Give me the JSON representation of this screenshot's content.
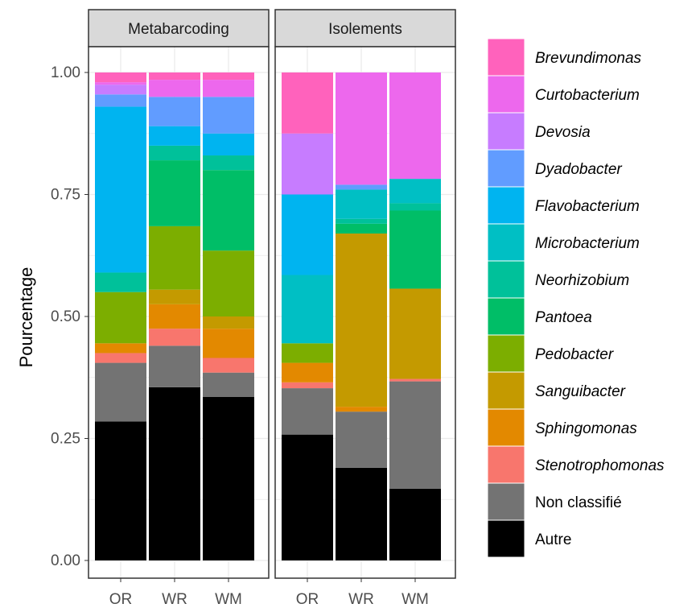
{
  "chart_data": {
    "type": "bar",
    "stacked": true,
    "ylabel": "Pourcentage",
    "ylim": [
      0,
      1
    ],
    "yticks": [
      "0.00",
      "0.25",
      "0.50",
      "0.75",
      "1.00"
    ],
    "categories": [
      "OR",
      "WR",
      "WM"
    ],
    "legend_position": "right",
    "panel_background": "#ffffff",
    "grid_color": "#ebebeb",
    "strip_fill": "#d9d9d9",
    "series": [
      {
        "name": "Autre",
        "color": "#000000",
        "italic": false
      },
      {
        "name": "Non classifié",
        "color": "#737373",
        "italic": false
      },
      {
        "name": "Stenotrophomonas",
        "color": "#f8766d",
        "italic": true
      },
      {
        "name": "Sphingomonas",
        "color": "#e38900",
        "italic": true
      },
      {
        "name": "Sanguibacter",
        "color": "#c49a00",
        "italic": true
      },
      {
        "name": "Pedobacter",
        "color": "#7cae00",
        "italic": true
      },
      {
        "name": "Pantoea",
        "color": "#00be67",
        "italic": true
      },
      {
        "name": "Neorhizobium",
        "color": "#00c19a",
        "italic": true
      },
      {
        "name": "Microbacterium",
        "color": "#00bfc4",
        "italic": true
      },
      {
        "name": "Flavobacterium",
        "color": "#00b4f0",
        "italic": true
      },
      {
        "name": "Dyadobacter",
        "color": "#619cff",
        "italic": true
      },
      {
        "name": "Devosia",
        "color": "#c77cff",
        "italic": true
      },
      {
        "name": "Curtobacterium",
        "color": "#ed68ed",
        "italic": true
      },
      {
        "name": "Brevundimonas",
        "color": "#ff62bc",
        "italic": true
      }
    ],
    "panels": [
      {
        "label": "Metabarcoding",
        "bars": [
          {
            "category": "OR",
            "values": [
              0.285,
              0.12,
              0.02,
              0.02,
              0.0,
              0.105,
              0.0,
              0.04,
              0.0,
              0.34,
              0.025,
              0.02,
              0.005,
              0.02
            ]
          },
          {
            "category": "WR",
            "values": [
              0.355,
              0.085,
              0.035,
              0.05,
              0.03,
              0.13,
              0.135,
              0.03,
              0.0,
              0.04,
              0.06,
              0.0,
              0.035,
              0.015
            ]
          },
          {
            "category": "WM",
            "values": [
              0.335,
              0.05,
              0.03,
              0.06,
              0.025,
              0.135,
              0.165,
              0.03,
              0.0,
              0.045,
              0.075,
              0.0,
              0.035,
              0.015
            ]
          }
        ]
      },
      {
        "label": "Isolements",
        "bars": [
          {
            "category": "OR",
            "values": [
              0.258,
              0.095,
              0.012,
              0.04,
              0.0,
              0.04,
              0.0,
              0.0,
              0.14,
              0.165,
              0.0,
              0.125,
              0.0,
              0.125
            ]
          },
          {
            "category": "WR",
            "values": [
              0.19,
              0.115,
              0.0,
              0.01,
              0.355,
              0.0,
              0.02,
              0.01,
              0.06,
              0.0,
              0.01,
              0.0,
              0.23,
              0.0
            ]
          },
          {
            "category": "WM",
            "values": [
              0.147,
              0.22,
              0.005,
              0.0,
              0.185,
              0.0,
              0.16,
              0.015,
              0.05,
              0.0,
              0.0,
              0.0,
              0.218,
              0.0
            ]
          }
        ]
      }
    ]
  }
}
